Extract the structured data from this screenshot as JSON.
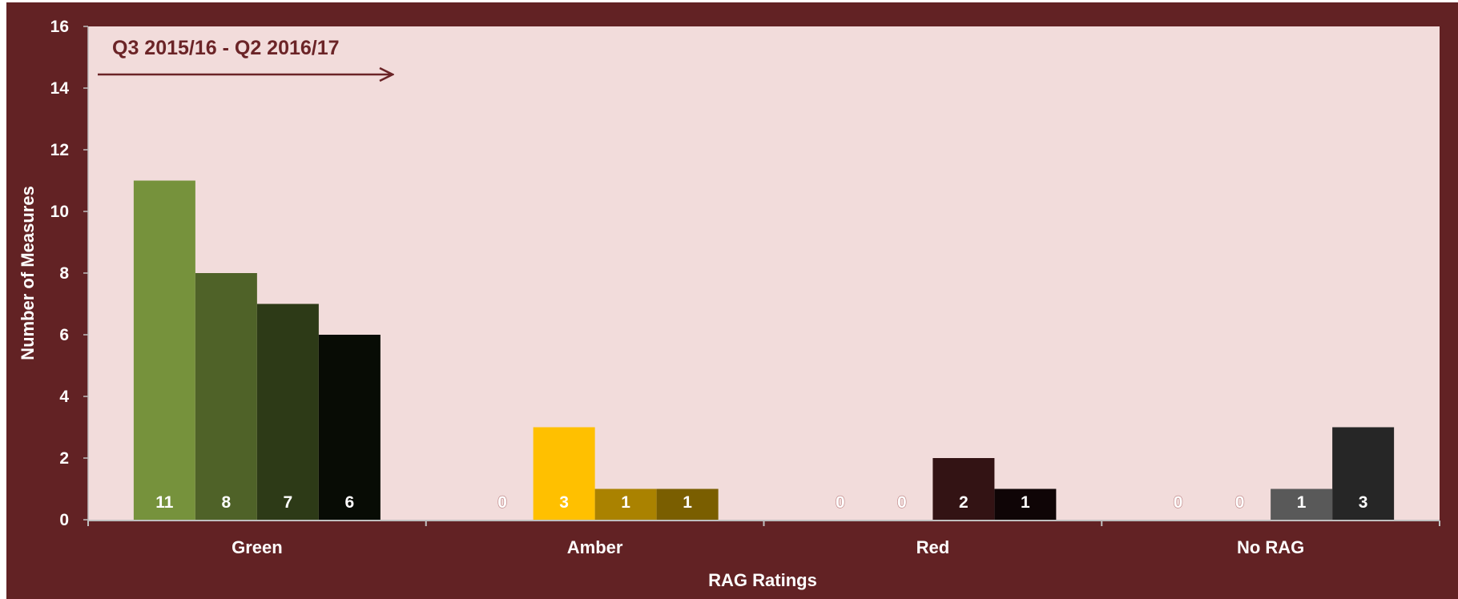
{
  "chart_data": {
    "type": "bar",
    "annotation": "Q3 2015/16 - Q2 2016/17",
    "xlabel": "RAG Ratings",
    "ylabel": "Number of Measures",
    "ylim": [
      0,
      16
    ],
    "yticks": [
      "0",
      "2",
      "4",
      "6",
      "8",
      "10",
      "12",
      "14",
      "16"
    ],
    "categories": [
      "Green",
      "Amber",
      "Red",
      "No RAG"
    ],
    "groups": [
      {
        "category": "Green",
        "values": [
          11,
          8,
          7,
          6
        ],
        "colors": [
          "#76923c",
          "#4f6228",
          "#2d3a17",
          "#080c05"
        ]
      },
      {
        "category": "Amber",
        "values": [
          0,
          3,
          1,
          1
        ],
        "colors": [
          "#ffc000",
          "#ffc000",
          "#aa8200",
          "#7a5e00"
        ]
      },
      {
        "category": "Red",
        "values": [
          0,
          0,
          2,
          1
        ],
        "colors": [
          "#a8676b",
          "#a8676b",
          "#331314",
          "#0f0506"
        ]
      },
      {
        "category": "No RAG",
        "values": [
          0,
          0,
          1,
          3
        ],
        "colors": [
          "#d8c8c8",
          "#bfb4b4",
          "#595959",
          "#262626"
        ]
      }
    ],
    "grid": false,
    "legend": "none",
    "colors": {
      "frame": "#622224",
      "plot_background": "#f2dcdb",
      "axis_text": "#ffffff",
      "annotation": "#6b2427",
      "label_zero_outline": "#c08a8a"
    }
  }
}
